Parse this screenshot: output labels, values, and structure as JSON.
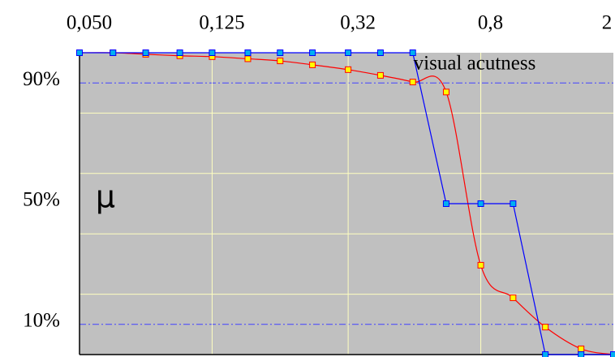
{
  "chart_data": {
    "type": "line",
    "annotations": [
      "visual  acutness",
      "μ"
    ],
    "x": [
      0.05,
      0.063,
      0.079,
      0.1,
      0.125,
      0.16,
      0.2,
      0.25,
      0.32,
      0.4,
      0.5,
      0.63,
      0.8,
      1.0,
      1.25,
      1.6,
      2.0
    ],
    "series": [
      {
        "color": "#ff0000",
        "marker_fill": "#ffff00",
        "smooth": true,
        "values": [
          100,
          100,
          99.5,
          99,
          98.7,
          98,
          97.3,
          96,
          94.4,
          92.5,
          90.3,
          87,
          29.6,
          18.8,
          9.1,
          1.9,
          0
        ]
      },
      {
        "color": "#0000ff",
        "marker_fill": "#00b0f0",
        "smooth": false,
        "values": [
          100,
          100,
          100,
          100,
          100,
          100,
          100,
          100,
          100,
          100,
          100,
          50,
          50,
          50,
          0,
          0,
          0
        ]
      }
    ],
    "xlim": [
      0.05,
      2
    ],
    "x_log": true,
    "xticks": [
      {
        "value": 0.05,
        "label": "0,050"
      },
      {
        "value": 0.125,
        "label": "0,125"
      },
      {
        "value": 0.32,
        "label": "0,32"
      },
      {
        "value": 0.8,
        "label": "0,8"
      },
      2
    ],
    "ylim": [
      0,
      100
    ],
    "yticks": [
      {
        "value": 10,
        "label": "10%"
      },
      {
        "value": 50,
        "label": "50%"
      },
      {
        "value": 90,
        "label": "90%"
      }
    ],
    "ygrid": [
      20,
      40,
      60,
      80
    ],
    "reference_lines": [
      10,
      90
    ],
    "grid_color": "#ffffc0",
    "plot_background": "#c0c0c0",
    "reference_color": "#4040ff"
  }
}
